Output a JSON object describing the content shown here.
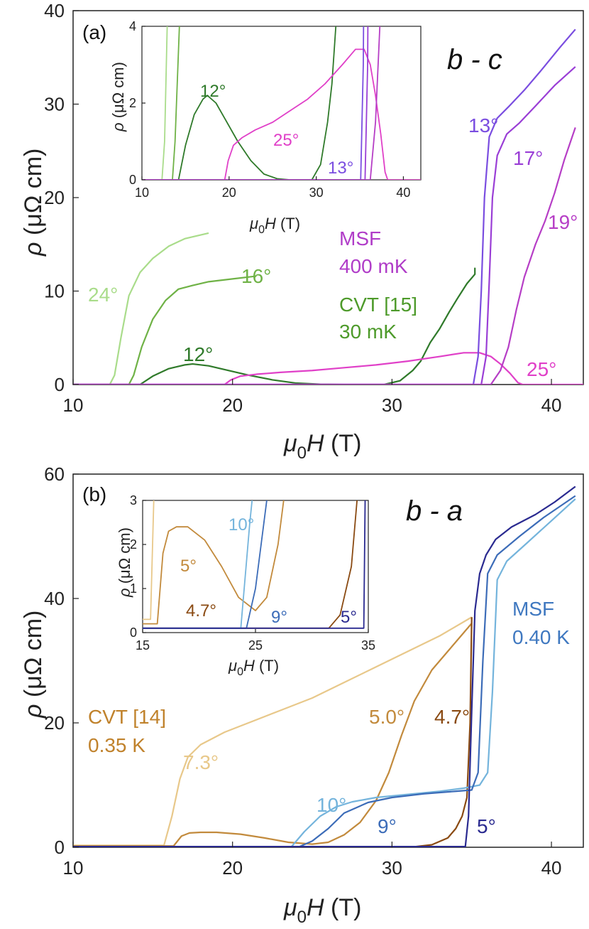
{
  "chart_data": [
    {
      "panel": "(a)",
      "type": "line",
      "orientation": "b - c",
      "xlabel": "μ0H (T)",
      "ylabel": "ρ (μΩ cm)",
      "xlim": [
        10,
        42
      ],
      "ylim": [
        0,
        40
      ],
      "xticks": [
        10,
        20,
        30,
        40
      ],
      "yticks": [
        0,
        10,
        20,
        30,
        40
      ],
      "groups": [
        {
          "label": "MSF",
          "sub": "400 mK",
          "color": "#b03cc8"
        },
        {
          "label": "CVT [15]",
          "sub": "30 mK",
          "color": "#4d9a2a"
        }
      ],
      "series": [
        {
          "name": "24°",
          "color": "#a9dc8a",
          "x": [
            10,
            12.3,
            12.6,
            13,
            13.5,
            14.2,
            15,
            16,
            17,
            18.5
          ],
          "y": [
            0,
            0,
            1,
            5,
            9.5,
            12,
            13.5,
            14.8,
            15.6,
            16.2
          ]
        },
        {
          "name": "16°",
          "color": "#6fb246",
          "x": [
            10,
            13.5,
            13.8,
            14.3,
            15,
            15.8,
            16.6,
            17.5,
            18.5,
            20,
            21.5
          ],
          "y": [
            0,
            0,
            1,
            4,
            7,
            9,
            10.2,
            10.6,
            11,
            11.3,
            11.6
          ]
        },
        {
          "name": "12°",
          "color": "#2f7a2a",
          "x": [
            10,
            14.2,
            15,
            16,
            17,
            17.5,
            18.5,
            19.5,
            21,
            22.5,
            24,
            25.5,
            27,
            28.5,
            29.5,
            30.5,
            31.3,
            31.8,
            32.4,
            33,
            33.6,
            34.1,
            34.7,
            35.2,
            35.2
          ],
          "y": [
            0,
            0,
            0.9,
            1.7,
            2.1,
            2.2,
            2.0,
            1.6,
            1.0,
            0.5,
            0.15,
            0.03,
            0,
            0,
            0,
            0.4,
            1.5,
            2.5,
            4.5,
            6.0,
            7.8,
            9.2,
            10.8,
            11.8,
            12.5
          ]
        },
        {
          "name": "25°",
          "color": "#e040c8",
          "x": [
            10,
            19.5,
            19.9,
            20.5,
            21.5,
            23,
            25,
            27,
            29,
            31,
            33,
            34.5,
            35.5,
            36.2,
            36.8,
            37.4,
            37.9,
            38.2,
            42
          ],
          "y": [
            0,
            0,
            0.5,
            0.9,
            1.1,
            1.3,
            1.5,
            1.8,
            2.1,
            2.5,
            3.0,
            3.4,
            3.4,
            3.0,
            2.2,
            1.2,
            0.2,
            0,
            0
          ]
        },
        {
          "name": "13°",
          "color": "#7a4de0",
          "x": [
            10,
            35.1,
            35.4,
            35.6,
            35.8,
            36.1,
            36.6,
            37.3,
            38.3,
            39.4,
            40.5,
            41.5
          ],
          "y": [
            0,
            0,
            3,
            10,
            20,
            26.5,
            28.5,
            29.7,
            31.5,
            33.7,
            36,
            38
          ]
        },
        {
          "name": "17°",
          "color": "#9a3ed6",
          "x": [
            10,
            35.6,
            35.9,
            36.1,
            36.3,
            36.6,
            37.2,
            38,
            39,
            40.2,
            41.5
          ],
          "y": [
            0,
            0,
            3,
            11,
            20,
            24.5,
            26.8,
            28,
            29.8,
            32,
            34
          ]
        },
        {
          "name": "19°",
          "color": "#b63ec6",
          "x": [
            10,
            36.2,
            36.8,
            37.3,
            37.8,
            38.3,
            39,
            39.6,
            40.2,
            40.8,
            41.5
          ],
          "y": [
            0,
            0,
            1.5,
            4,
            8,
            11.5,
            15,
            17.5,
            20.5,
            24,
            27.5
          ]
        }
      ],
      "inset": {
        "xlabel": "μ0H (T)",
        "ylabel": "ρ (μΩ cm)",
        "xlim": [
          10,
          42
        ],
        "ylim": [
          0,
          4
        ],
        "xticks": [
          10,
          20,
          30,
          40
        ],
        "yticks": [
          0,
          2,
          4
        ],
        "labels": [
          "12°",
          "25°",
          "13°"
        ]
      }
    },
    {
      "panel": "(b)",
      "type": "line",
      "orientation": "b - a",
      "xlabel": "μ0H (T)",
      "ylabel": "ρ (μΩ cm)",
      "xlim": [
        10,
        42
      ],
      "ylim": [
        0,
        60
      ],
      "xticks": [
        10,
        20,
        30,
        40
      ],
      "yticks": [
        0,
        20,
        40,
        60
      ],
      "groups": [
        {
          "label": "MSF",
          "sub": "0.40 K",
          "color": "#3f78c0"
        },
        {
          "label": "CVT [14]",
          "sub": "0.35 K",
          "color": "#c0822c"
        }
      ],
      "series": [
        {
          "name": "7.3°",
          "color": "#e8c88a",
          "x": [
            10,
            15.7,
            16.2,
            16.7,
            17.2,
            18,
            19.5,
            21,
            23,
            25,
            27,
            29,
            31,
            33,
            35
          ],
          "y": [
            0.3,
            0.3,
            5,
            11,
            14.5,
            16.5,
            18.5,
            20,
            22,
            24,
            26.5,
            29,
            31.5,
            34,
            37
          ]
        },
        {
          "name": "5.0°",
          "color": "#c28a3c",
          "x": [
            10,
            16.3,
            16.8,
            17.3,
            18,
            19,
            20.5,
            22,
            23.5,
            25,
            26,
            27,
            28,
            29,
            29.8,
            30.6,
            31.4,
            32.5,
            33.5,
            34.5,
            35
          ],
          "y": [
            0.2,
            0.2,
            1.8,
            2.3,
            2.4,
            2.4,
            2.1,
            1.5,
            0.8,
            0.5,
            0.8,
            2,
            4,
            7.5,
            12,
            18,
            23.5,
            28.5,
            31.5,
            34.5,
            36
          ]
        },
        {
          "name": "4.7°",
          "color": "#8a4a12",
          "x": [
            10,
            31.5,
            32.5,
            33.5,
            34,
            34.4,
            34.7,
            34.9,
            35
          ],
          "y": [
            0.1,
            0.1,
            0.4,
            1.5,
            3,
            5,
            8,
            20,
            37
          ]
        },
        {
          "name": "10°",
          "color": "#74b4dc",
          "x": [
            10,
            23.7,
            24.5,
            25.5,
            26.5,
            27.5,
            29,
            31,
            33,
            34.5,
            35.5,
            36,
            36.3,
            36.6,
            37.2,
            38.5,
            40,
            41.5
          ],
          "y": [
            0.1,
            0.1,
            2.5,
            5,
            6.5,
            7.3,
            8,
            8.5,
            9,
            9.5,
            10,
            12,
            25,
            43,
            46,
            49,
            52.5,
            56
          ]
        },
        {
          "name": "9°",
          "color": "#3c6cb8",
          "x": [
            10,
            24.2,
            25,
            26,
            27,
            28.5,
            30,
            32,
            34,
            35,
            35.4,
            35.7,
            36,
            36.6,
            38,
            39.5,
            41.5
          ],
          "y": [
            0.1,
            0.1,
            1,
            3,
            5.5,
            7.2,
            8,
            8.6,
            9,
            9.2,
            12,
            30,
            44,
            47,
            50,
            53,
            56.5
          ]
        },
        {
          "name": "5°",
          "color": "#2a2a90",
          "x": [
            10,
            34.6,
            34.8,
            35,
            35.2,
            35.5,
            35.9,
            36.5,
            37.5,
            39,
            40.2,
            41.5
          ],
          "y": [
            0.1,
            0.1,
            5,
            22,
            38,
            44,
            47,
            49.5,
            51.5,
            53.5,
            55.5,
            58
          ]
        }
      ],
      "inset": {
        "xlabel": "μ0H (T)",
        "ylabel": "ρ (μΩ cm)",
        "xlim": [
          15,
          35
        ],
        "ylim": [
          0,
          3
        ],
        "xticks": [
          15,
          25,
          35
        ],
        "yticks": [
          0,
          1,
          2,
          3
        ],
        "labels": [
          "10°",
          "5°",
          "4.7°",
          "9°",
          "5°"
        ]
      }
    }
  ]
}
